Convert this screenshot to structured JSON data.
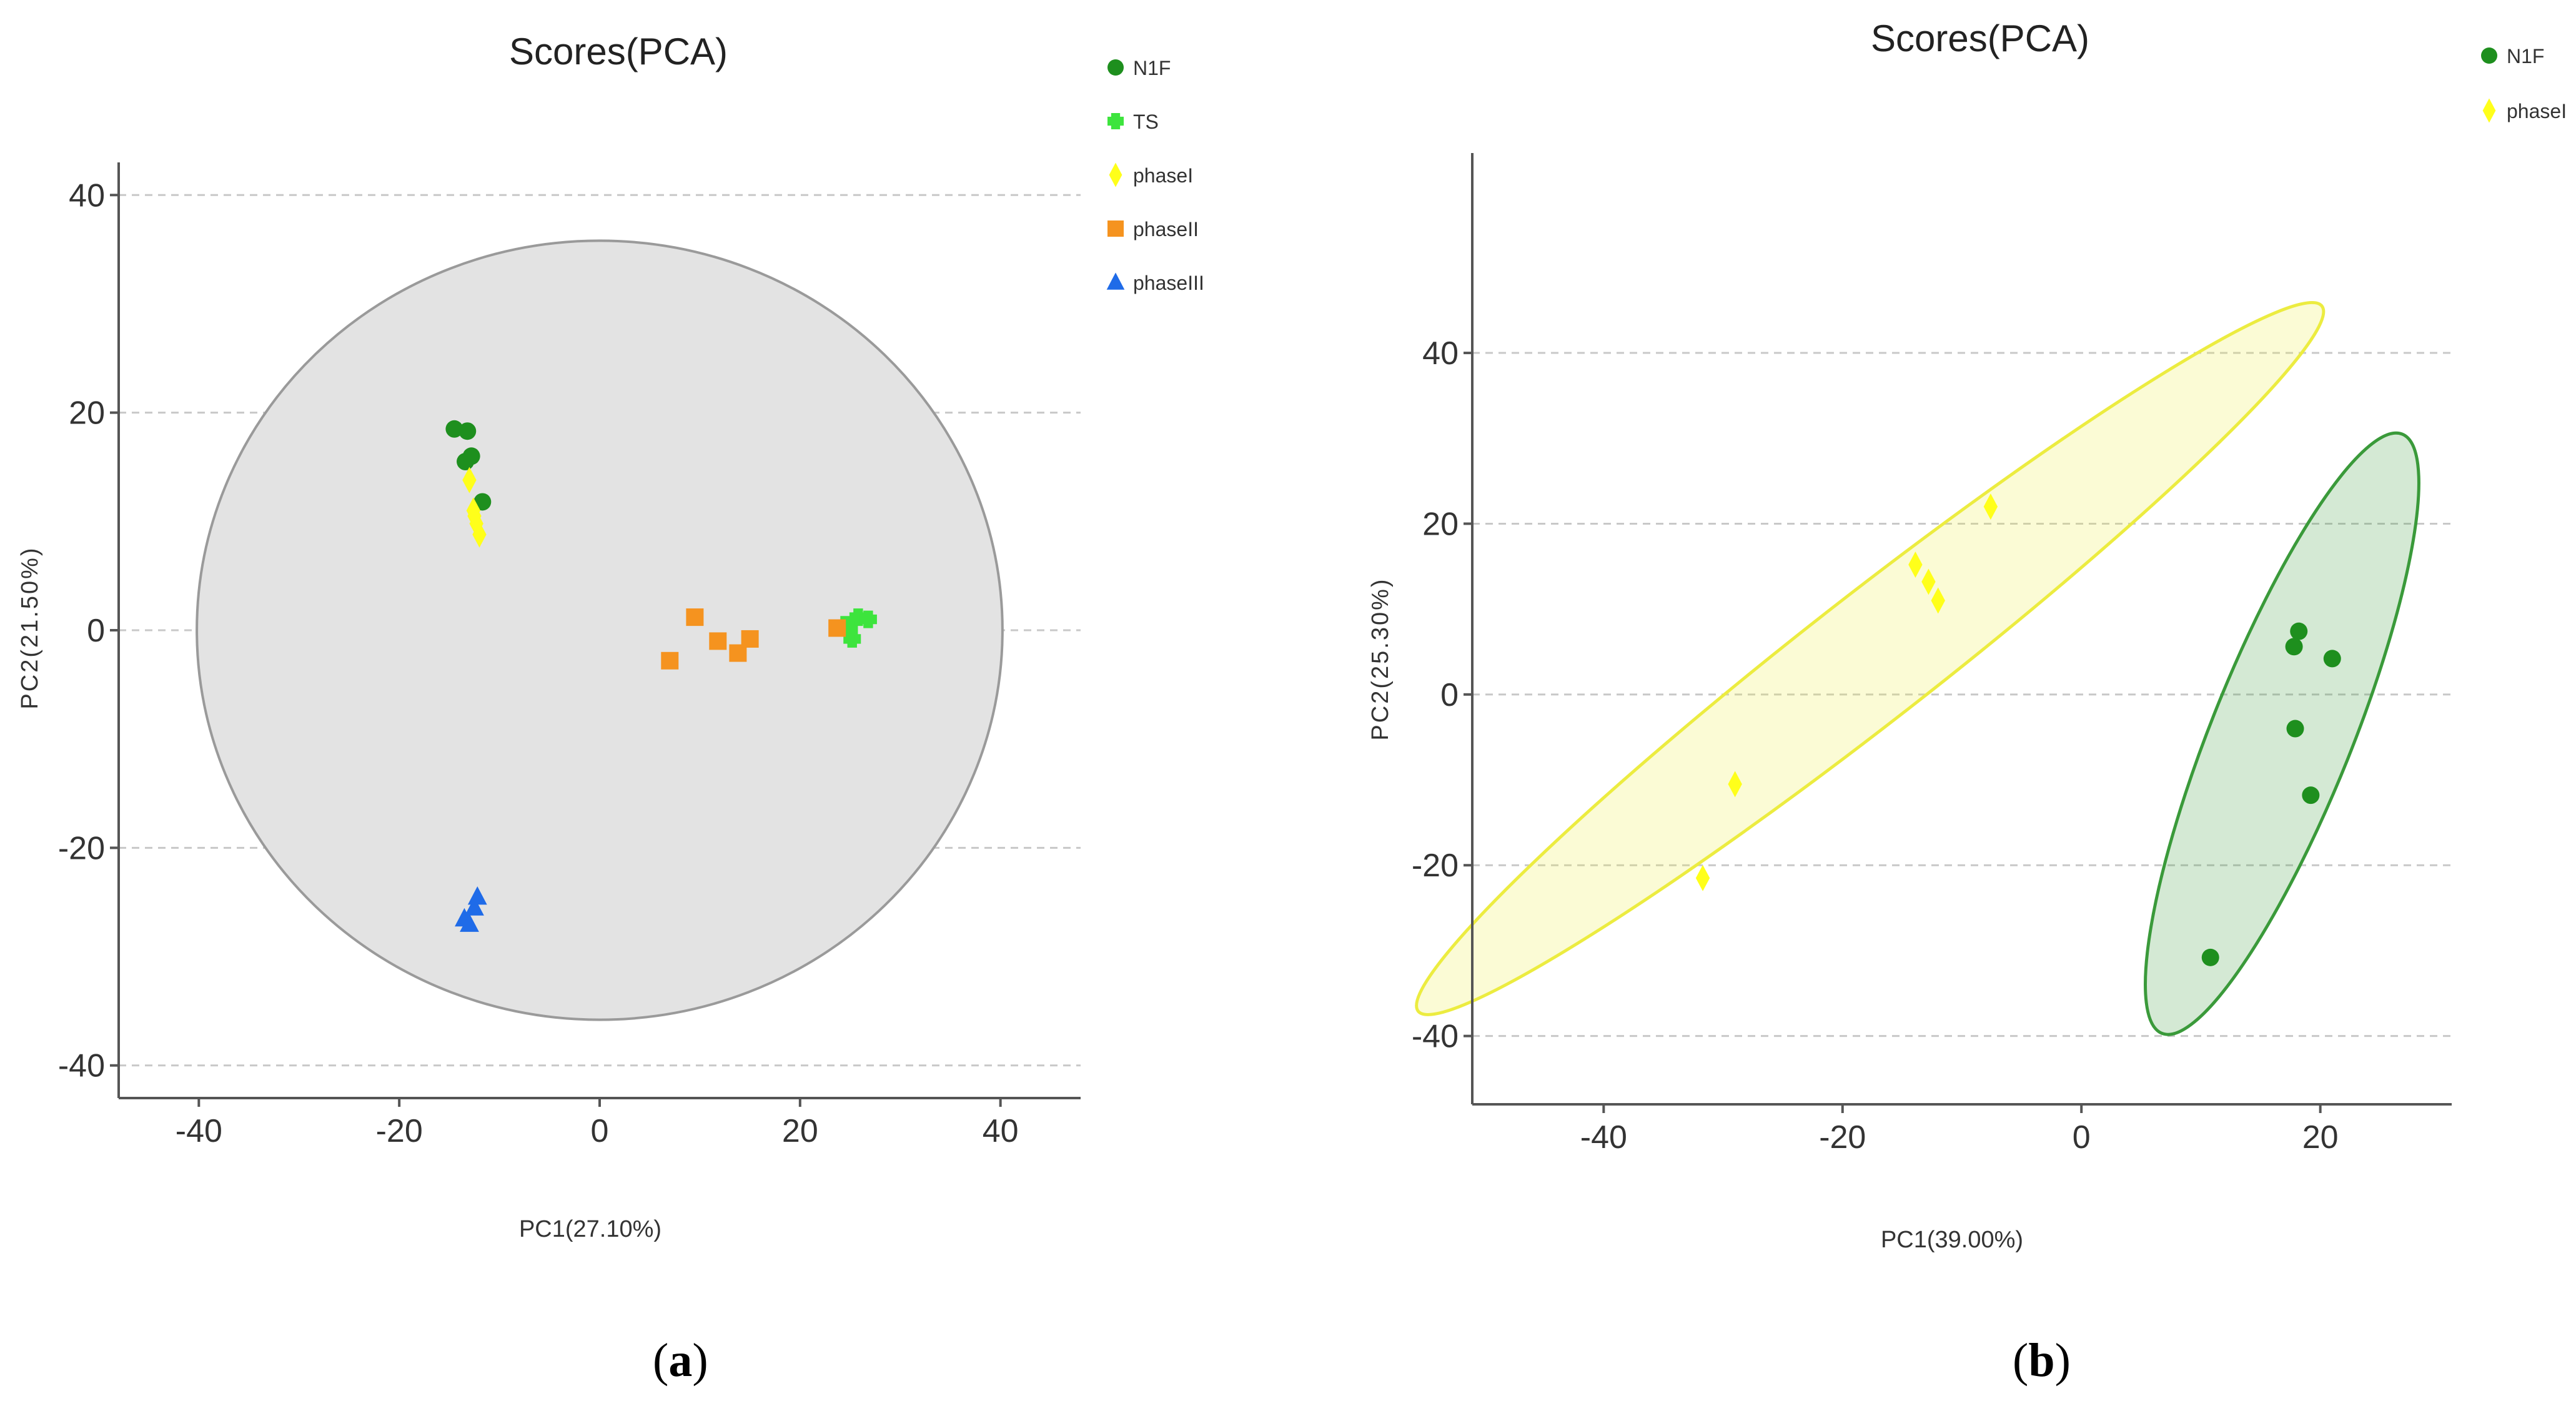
{
  "panels": [
    {
      "label_open": "(",
      "label_letter": "a",
      "label_close": ")"
    },
    {
      "label_open": "(",
      "label_letter": "b",
      "label_close": ")"
    }
  ],
  "chart_data": [
    {
      "type": "scatter",
      "title": "Scores(PCA)",
      "xlabel": "PC1(27.10%)",
      "ylabel": "PC2(21.50%)",
      "xlim": [
        -48,
        48
      ],
      "ylim": [
        -43,
        43
      ],
      "xticks": [
        -40,
        -20,
        0,
        20,
        40
      ],
      "yticks": [
        40,
        20,
        0,
        -20,
        -40
      ],
      "grid": "horizontal dashed",
      "legend_position": "top-right",
      "confidence_ellipse": {
        "center": [
          0,
          0
        ],
        "rx": 40.2,
        "ry": 35.8,
        "color": "#e3e3e3"
      },
      "series": [
        {
          "name": "N1F",
          "marker": "circle",
          "color": "#1e8f1e",
          "points": [
            [
              -14.5,
              18.5
            ],
            [
              -13.2,
              18.3
            ],
            [
              -13.4,
              15.5
            ],
            [
              -12.8,
              16.0
            ],
            [
              -11.7,
              11.8
            ]
          ]
        },
        {
          "name": "TS",
          "marker": "plus",
          "color": "#3de43d",
          "points": [
            [
              24.5,
              0.5
            ],
            [
              25.2,
              -0.8
            ],
            [
              25.8,
              1.2
            ],
            [
              26.8,
              1.0
            ],
            [
              24.9,
              0.0
            ]
          ]
        },
        {
          "name": "phaseI",
          "marker": "diamond",
          "color": "#ffff1a",
          "points": [
            [
              -13.0,
              13.8
            ],
            [
              -12.5,
              10.5
            ],
            [
              -12.3,
              9.8
            ],
            [
              -12.0,
              8.8
            ],
            [
              -12.6,
              11.0
            ]
          ]
        },
        {
          "name": "phaseII",
          "marker": "square",
          "color": "#f5931f",
          "points": [
            [
              7.0,
              -2.8
            ],
            [
              9.5,
              1.2
            ],
            [
              11.8,
              -1.0
            ],
            [
              13.8,
              -2.1
            ],
            [
              15.0,
              -0.8
            ],
            [
              23.7,
              0.2
            ]
          ]
        },
        {
          "name": "phaseIII",
          "marker": "triangle",
          "color": "#1f6be8",
          "points": [
            [
              -13.5,
              -26.5
            ],
            [
              -13.0,
              -27.0
            ],
            [
              -12.5,
              -25.5
            ],
            [
              -12.2,
              -24.5
            ]
          ]
        }
      ]
    },
    {
      "type": "scatter",
      "title": "Scores(PCA)",
      "xlabel": "PC1(39.00%)",
      "ylabel": "PC2(25.30%)",
      "xlim": [
        -51,
        31
      ],
      "ylim": [
        -48,
        55
      ],
      "xticks": [
        -40,
        -20,
        0,
        20
      ],
      "yticks": [
        40,
        20,
        0,
        -20,
        -40
      ],
      "grid": "horizontal dashed",
      "legend_position": "top-right",
      "series": [
        {
          "name": "N1F",
          "marker": "circle",
          "color": "#1e8f1e",
          "points": [
            [
              18.2,
              7.4
            ],
            [
              17.8,
              5.6
            ],
            [
              21.0,
              4.2
            ],
            [
              17.9,
              -4.0
            ],
            [
              19.2,
              -11.8
            ],
            [
              10.8,
              -30.8
            ]
          ],
          "ellipse": {
            "center": [
              16.8,
              -4.6
            ],
            "rx": 36.5,
            "ry": 6.0,
            "angle_deg": 74,
            "color": "#3a9a3a"
          }
        },
        {
          "name": "phaseI",
          "marker": "diamond",
          "color": "#ffff1a",
          "points": [
            [
              -7.6,
              22.0
            ],
            [
              -13.9,
              15.2
            ],
            [
              -12.8,
              13.2
            ],
            [
              -12.0,
              11.0
            ],
            [
              -29.0,
              -10.5
            ],
            [
              -31.7,
              -21.5
            ]
          ],
          "ellipse": {
            "center": [
              -17.7,
              4.2
            ],
            "rx": 56.0,
            "ry": 6.0,
            "angle_deg": 47.5,
            "color": "#ecec40"
          }
        }
      ]
    }
  ]
}
